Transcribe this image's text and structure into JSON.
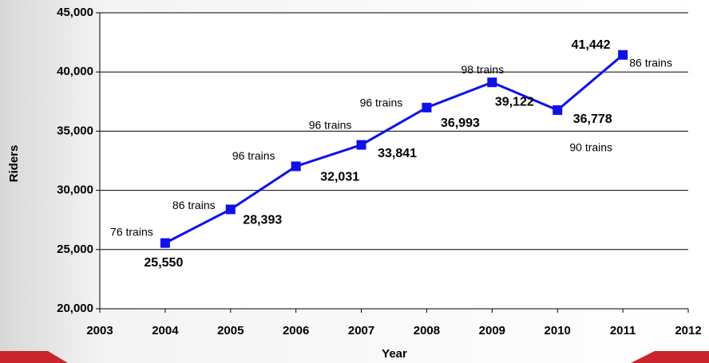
{
  "chart_data": {
    "type": "line",
    "x_label": "Year",
    "y_label": "Riders",
    "x": [
      2004,
      2005,
      2006,
      2007,
      2008,
      2009,
      2010,
      2011
    ],
    "series": [
      {
        "color": "#1010e8",
        "values": [
          25550,
          28393,
          32031,
          33841,
          36993,
          39122,
          36778,
          41442
        ],
        "value_labels": [
          "25,550",
          "28,393",
          "32,031",
          "33,841",
          "36,993",
          "39,122",
          "36,778",
          "41,442"
        ]
      }
    ],
    "point_notes": [
      "76 trains",
      "86 trains",
      "96 trains",
      "96 trains",
      "96 trains",
      "98 trains",
      "90 trains",
      "86 trains"
    ],
    "xlim": [
      2003,
      2012
    ],
    "xticks": [
      2003,
      2004,
      2005,
      2006,
      2007,
      2008,
      2009,
      2010,
      2011,
      2012
    ],
    "ylim": [
      20000,
      45000
    ],
    "yticks": [
      {
        "value": 20000,
        "label": "20,000"
      },
      {
        "value": 25000,
        "label": "25,000"
      },
      {
        "value": 30000,
        "label": "30,000"
      },
      {
        "value": 35000,
        "label": "35,000"
      },
      {
        "value": 40000,
        "label": "40,000"
      },
      {
        "value": 45000,
        "label": "45,000"
      }
    ],
    "grid": true
  }
}
